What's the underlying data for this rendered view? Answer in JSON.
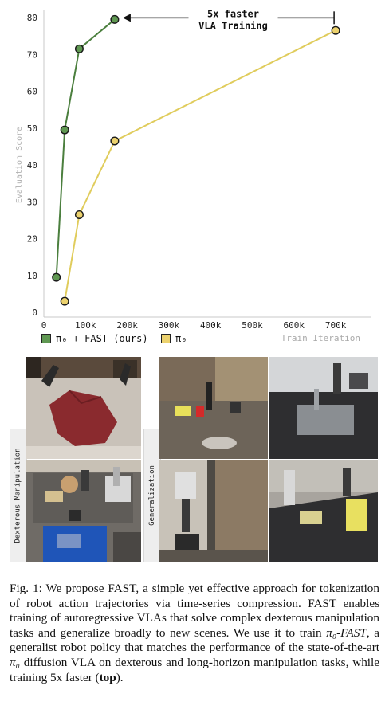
{
  "chart_data": {
    "type": "line",
    "annotation": "5x faster\nVLA Training",
    "ylabel": "Evaluation Score",
    "xlabel": "Train Iteration",
    "xlim": [
      0,
      740000
    ],
    "ylim": [
      0,
      80
    ],
    "xticks": [
      0,
      100000,
      200000,
      300000,
      400000,
      500000,
      600000,
      700000
    ],
    "xtick_labels": [
      "0",
      "100k",
      "200k",
      "300k",
      "400k",
      "500k",
      "600k",
      "700k"
    ],
    "yticks": [
      0,
      10,
      20,
      30,
      40,
      50,
      60,
      70,
      80
    ],
    "grid": false,
    "legend_position": "bottom-left",
    "series": [
      {
        "name": "π₀ + FAST (ours)",
        "color": "#4b7f3e",
        "marker_fill": "#5f9852",
        "points": [
          [
            30000,
            9.5
          ],
          [
            50000,
            49.5
          ],
          [
            85000,
            71.5
          ],
          [
            170000,
            79.5
          ]
        ]
      },
      {
        "name": "π₀",
        "color": "#e0cc5c",
        "marker_fill": "#ecd26e",
        "points": [
          [
            50000,
            3
          ],
          [
            85000,
            26.5
          ],
          [
            170000,
            46.5
          ],
          [
            700000,
            76.5
          ]
        ]
      }
    ]
  },
  "panels": {
    "dexterous_label": "Dexterous Manipulation",
    "generalization_label": "Generalization"
  },
  "caption": {
    "prefix": "Fig. 1: We propose FAST, a simple yet effective approach for tokenization of robot action trajectories via time-series compression. FAST enables training of autoregressive VLAs that solve complex dexterous manipulation tasks and generalize broadly to new scenes. We use it to train ",
    "pi_fast": "π₀-FAST",
    "middle1": ", a generalist robot policy that matches the performance of the state-of-the-art ",
    "pi": "π₀",
    "middle2": " diffusion VLA on dexterous and long-horizon manipulation tasks, while training 5x faster (",
    "bold": "top",
    "suffix": ")."
  }
}
